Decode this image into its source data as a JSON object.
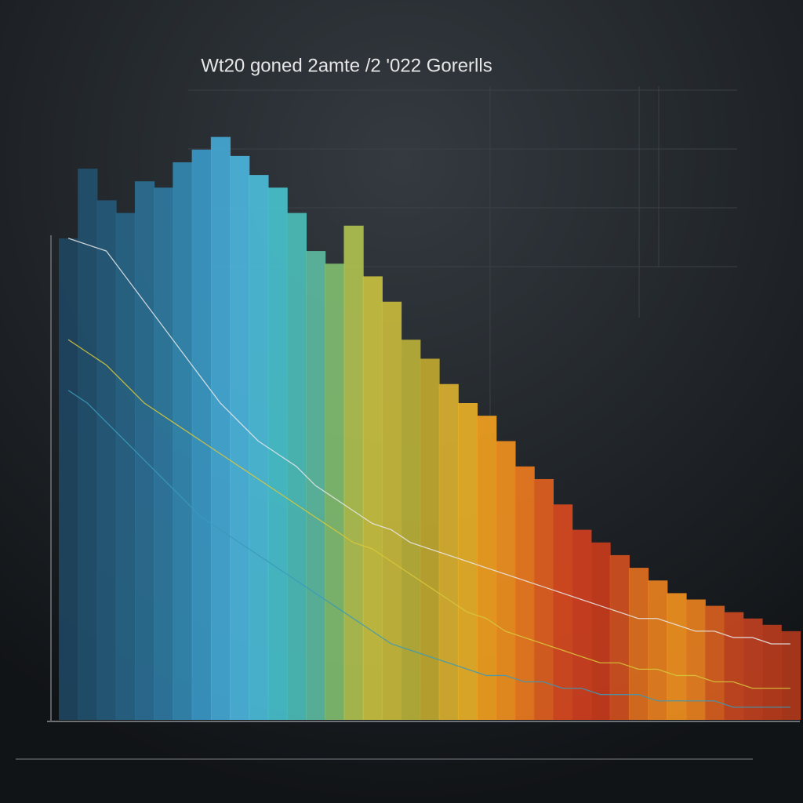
{
  "chart_data": {
    "type": "bar",
    "title": "Wt20 goned 2amte /2 '022 Gorerlls",
    "categories": [
      null,
      null,
      null,
      null,
      null,
      null,
      null,
      null,
      null,
      null,
      null,
      null,
      null,
      null,
      null,
      null,
      null,
      null,
      null,
      null,
      null,
      null,
      null,
      null,
      null,
      null,
      null,
      null,
      null,
      null,
      null,
      null,
      null,
      null,
      null,
      null,
      null,
      null,
      null
    ],
    "values": [
      76,
      87,
      82,
      80,
      85,
      84,
      88,
      90,
      92,
      89,
      86,
      84,
      80,
      74,
      72,
      78,
      70,
      66,
      60,
      57,
      53,
      50,
      48,
      44,
      40,
      38,
      34,
      30,
      28,
      26,
      24,
      22,
      20,
      19,
      18,
      17,
      16,
      15,
      14
    ],
    "colors": [
      "#1e4560",
      "#22506e",
      "#255a7a",
      "#286486",
      "#2b6e92",
      "#2f7aa0",
      "#3388b0",
      "#3a98c4",
      "#44a8d4",
      "#4cb4dc",
      "#4cbcd8",
      "#48c0cc",
      "#4cbcb8",
      "#5cb8a0",
      "#80bc70",
      "#b0c050",
      "#c8c040",
      "#c8b83c",
      "#b8b038",
      "#c0a830",
      "#d8b030",
      "#e8b028",
      "#f0a020",
      "#f09020",
      "#ec7a20",
      "#e06020",
      "#d84a20",
      "#d04020",
      "#c83c1c",
      "#d05020",
      "#e07020",
      "#e88020",
      "#f09020",
      "#e88020",
      "#d86020",
      "#c84820",
      "#c04020",
      "#b83c1c",
      "#b0381c"
    ],
    "series": [
      {
        "color": "#e8e8e8",
        "values": [
          76,
          75,
          74,
          70,
          66,
          62,
          58,
          54,
          50,
          47,
          44,
          42,
          40,
          37,
          35,
          33,
          31,
          30,
          28,
          27,
          26,
          25,
          24,
          23,
          22,
          21,
          20,
          19,
          18,
          17,
          16,
          16,
          15,
          14,
          14,
          13,
          13,
          12,
          12
        ]
      },
      {
        "color": "#d8c83c",
        "values": [
          60,
          58,
          56,
          53,
          50,
          48,
          46,
          44,
          42,
          40,
          38,
          36,
          34,
          32,
          30,
          28,
          27,
          25,
          23,
          21,
          19,
          17,
          16,
          14,
          13,
          12,
          11,
          10,
          9,
          9,
          8,
          8,
          7,
          7,
          6,
          6,
          5,
          5,
          5
        ]
      },
      {
        "color": "#3a9ab8",
        "values": [
          52,
          50,
          47,
          44,
          41,
          38,
          35,
          32,
          30,
          28,
          26,
          24,
          22,
          20,
          18,
          16,
          14,
          12,
          11,
          10,
          9,
          8,
          7,
          7,
          6,
          6,
          5,
          5,
          4,
          4,
          4,
          3,
          3,
          3,
          3,
          2,
          2,
          2,
          2
        ]
      }
    ],
    "ylim": [
      0,
      100
    ]
  }
}
